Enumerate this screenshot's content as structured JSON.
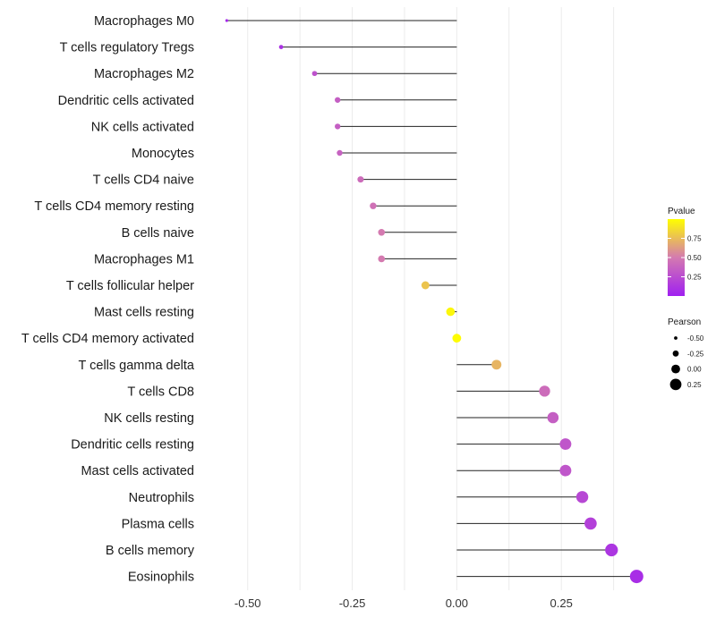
{
  "chart_data": {
    "type": "lollipop",
    "categories": [
      "Macrophages M0",
      "T cells regulatory  Tregs",
      "Macrophages M2",
      "Dendritic cells activated",
      "NK cells activated",
      "Monocytes",
      "T cells CD4 naive",
      "T cells CD4 memory resting",
      "B cells naive",
      "Macrophages M1",
      "T cells follicular helper",
      "Mast cells resting",
      "T cells CD4 memory activated",
      "T cells gamma delta",
      "T cells CD8",
      "NK cells resting",
      "Dendritic cells resting",
      "Mast cells activated",
      "Neutrophils",
      "Plasma cells",
      "B cells memory",
      "Eosinophils"
    ],
    "pearson": [
      -0.55,
      -0.42,
      -0.34,
      -0.285,
      -0.285,
      -0.28,
      -0.23,
      -0.2,
      -0.18,
      -0.18,
      -0.075,
      -0.015,
      0.0,
      0.095,
      0.21,
      0.23,
      0.26,
      0.26,
      0.3,
      0.32,
      0.37,
      0.43
    ],
    "pvalue": [
      0.05,
      0.1,
      0.28,
      0.35,
      0.35,
      0.37,
      0.42,
      0.45,
      0.5,
      0.5,
      0.78,
      0.97,
      0.99,
      0.72,
      0.42,
      0.35,
      0.3,
      0.3,
      0.22,
      0.18,
      0.12,
      0.08
    ],
    "xlim": [
      -0.6,
      0.47
    ],
    "x_ticks": [
      -0.5,
      -0.25,
      0.0,
      0.25
    ],
    "x_tick_labels": [
      "-0.50",
      "-0.25",
      "0.00",
      "0.25"
    ],
    "grid": true,
    "color_legend": {
      "title": "Pvalue",
      "ticks": [
        0.25,
        0.5,
        0.75
      ],
      "tick_labels": [
        "0.25",
        "0.50",
        "0.75"
      ],
      "range": [
        0.0,
        1.0
      ],
      "low_color": "#a020f0",
      "mid_color": "#d47ab0",
      "high_color": "#ffff00"
    },
    "size_legend": {
      "title": "Pearson",
      "values": [
        -0.5,
        -0.25,
        0.0,
        0.25
      ],
      "labels": [
        "-0.50",
        "-0.25",
        "0.00",
        "0.25"
      ]
    }
  }
}
